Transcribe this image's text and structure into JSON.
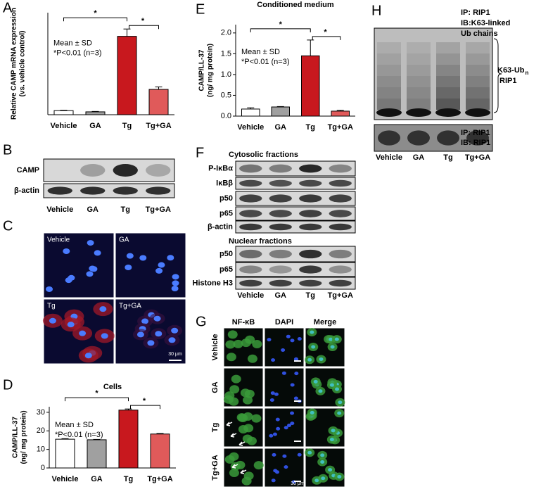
{
  "chart_data": [
    {
      "type": "bar",
      "panel": "A",
      "ylabel": [
        "Relative CAMP mRNA expression",
        "(vs. vehicle control)"
      ],
      "categories": [
        "Vehicle",
        "GA",
        "Tg",
        "Tg+GA"
      ],
      "values": [
        1,
        0.7,
        19.2,
        6.2
      ],
      "errors": [
        0.1,
        0.1,
        1.8,
        0.6
      ],
      "colors": [
        "#ffffff",
        "#a0a0a0",
        "#c8181e",
        "#e05a5a"
      ],
      "ylim": [
        0,
        25
      ],
      "annotations": [
        "*",
        "*",
        "Mean ± SD",
        "*P<0.01 (n=3)"
      ]
    },
    {
      "type": "bar",
      "panel": "E",
      "title": "Conditioned medium",
      "ylabel": [
        "CAMP/LL-37",
        "(ng/ mg protein)"
      ],
      "categories": [
        "Vehicle",
        "GA",
        "Tg",
        "Tg+GA"
      ],
      "values": [
        0.17,
        0.22,
        1.45,
        0.12
      ],
      "errors": [
        0.03,
        0.01,
        0.38,
        0.02
      ],
      "colors": [
        "#ffffff",
        "#a0a0a0",
        "#c8181e",
        "#e05a5a"
      ],
      "ylim": [
        0,
        2.2
      ],
      "yticks": [
        {
          "value": 0,
          "label": "0.0"
        },
        {
          "value": 0.5,
          "label": "0.5"
        },
        {
          "value": 1,
          "label": "1.0"
        },
        {
          "value": 1.5,
          "label": "1.5"
        },
        {
          "value": 2,
          "label": "2.0"
        }
      ],
      "annotations": [
        "*",
        "*",
        "Mean ± SD",
        "*P<0.01 (n=3)"
      ]
    },
    {
      "type": "bar",
      "panel": "D",
      "title": "Cells",
      "ylabel": [
        "CAMP/LL-37",
        "(ng/ mg protein)"
      ],
      "categories": [
        "Vehicle",
        "GA",
        "Tg",
        "Tg+GA"
      ],
      "values": [
        15.5,
        15.2,
        31.2,
        18.3
      ],
      "errors": [
        0.3,
        0.2,
        0.6,
        0.3
      ],
      "colors": [
        "#ffffff",
        "#a0a0a0",
        "#c8181e",
        "#e05a5a"
      ],
      "ylim": [
        0,
        33
      ],
      "yticks": [
        0,
        10,
        20,
        30
      ],
      "annotations": [
        "*",
        "*",
        "Mean ± SD",
        "*P<0.01 (n=3)"
      ]
    }
  ],
  "blot_b": {
    "panel": "B",
    "rows": [
      "CAMP",
      "β-actin"
    ],
    "lanes": [
      "Vehicle",
      "GA",
      "Tg",
      "Tg+GA"
    ]
  },
  "image_c": {
    "panel": "C",
    "labels": [
      "Vehicle",
      "GA",
      "Tg",
      "Tg+GA"
    ],
    "scale": "30 μm"
  },
  "blot_f": {
    "panel": "F",
    "cytosolic_title": "Cytosolic fractions",
    "cytosolic_rows": [
      "P-IκBα",
      "IκBβ",
      "p50",
      "p65",
      "β-actin"
    ],
    "nuclear_title": "Nuclear fractions",
    "nuclear_rows": [
      "p50",
      "p65",
      "Histone H3"
    ],
    "lanes": [
      "Vehicle",
      "GA",
      "Tg",
      "Tg+GA"
    ]
  },
  "image_g": {
    "panel": "G",
    "columns": [
      "NF-κB",
      "DAPI",
      "Merge"
    ],
    "rows": [
      "Vehicle",
      "GA",
      "Tg",
      "Tg+GA"
    ],
    "scale": "30 μm"
  },
  "blot_h": {
    "panel": "H",
    "top_labels": [
      "IP: RIP1",
      "IB:K63-linked",
      "Ub chains"
    ],
    "ub_label": "K63-Ub",
    "ub_sub": "n",
    "ub_target": "RIP1",
    "bottom_labels": [
      "IP: RIP1",
      "IB: RIP1"
    ],
    "lanes": [
      "Vehicle",
      "GA",
      "Tg",
      "Tg+GA"
    ]
  }
}
